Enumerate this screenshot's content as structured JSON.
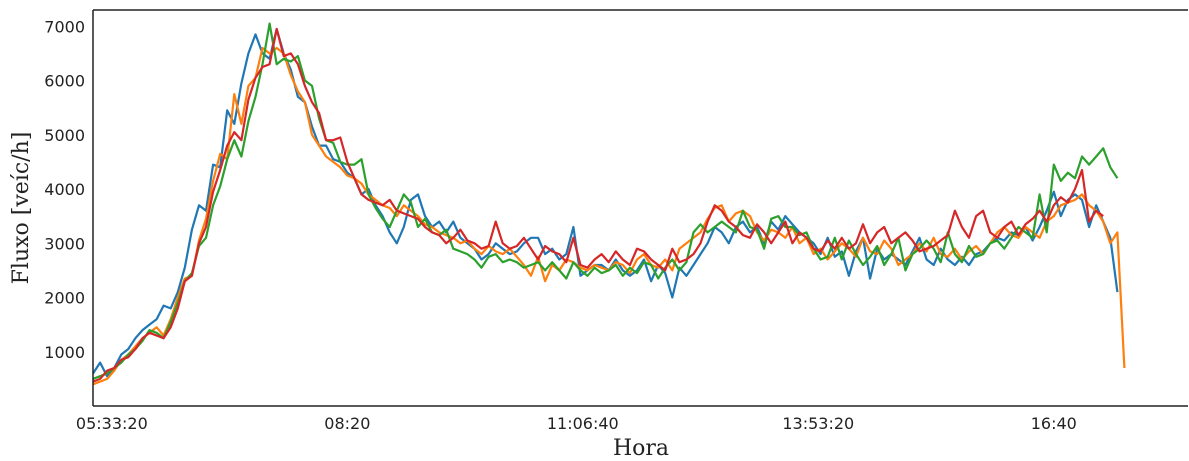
{
  "chart_data": {
    "type": "line",
    "title": "",
    "xlabel": "Hora",
    "ylabel": "Fluxo [veíc/h]",
    "x_start": "05:20",
    "x_step_minutes": 5,
    "xlim": [
      "05:20",
      "18:15"
    ],
    "ylim": [
      0,
      7300
    ],
    "xticks": [
      "05:33:20",
      "08:20",
      "11:06:40",
      "13:53:20",
      "16:40"
    ],
    "yticks": [
      1000,
      2000,
      3000,
      4000,
      5000,
      6000,
      7000
    ],
    "grid": false,
    "legend": "none",
    "series": [
      {
        "color": "#1f77b4",
        "values": [
          600,
          800,
          550,
          700,
          950,
          1050,
          1250,
          1400,
          1500,
          1600,
          1850,
          1800,
          2100,
          2550,
          3250,
          3700,
          3600,
          4450,
          4400,
          5450,
          5200,
          5950,
          6500,
          6850,
          6500,
          6400,
          6950,
          6500,
          6200,
          5700,
          5600,
          5150,
          4800,
          4800,
          4550,
          4500,
          4300,
          4200,
          3900,
          4000,
          3700,
          3500,
          3200,
          3000,
          3300,
          3800,
          3900,
          3500,
          3300,
          3400,
          3200,
          3400,
          3100,
          3000,
          2900,
          2700,
          2800,
          3000,
          2900,
          2800,
          2850,
          3000,
          3100,
          3100,
          2800,
          2900,
          2700,
          2800,
          3300,
          2400,
          2500,
          2600,
          2600,
          2500,
          2700,
          2500,
          2400,
          2500,
          2700,
          2300,
          2600,
          2450,
          2000,
          2550,
          2400,
          2600,
          2800,
          3000,
          3300,
          3200,
          3000,
          3300,
          3400,
          3200,
          3300,
          3000,
          3400,
          3250,
          3500,
          3350,
          3200,
          3100,
          3000,
          2800,
          3100,
          2750,
          2850,
          2400,
          2850,
          3100,
          2350,
          2900,
          2700,
          2800,
          2700,
          2600,
          2850,
          3100,
          2700,
          2600,
          2900,
          2700,
          2600,
          2750,
          2600,
          2800,
          2850,
          3000,
          3100,
          3050,
          3200,
          3150,
          3300,
          3050,
          3300,
          3600,
          3950,
          3500,
          3800,
          3900,
          3800,
          3300,
          3700,
          3400,
          3100,
          2100
        ]
      },
      {
        "color": "#ff7f0e",
        "values": [
          400,
          450,
          500,
          650,
          850,
          950,
          1100,
          1250,
          1350,
          1450,
          1300,
          1600,
          2000,
          2350,
          2400,
          3050,
          3450,
          4150,
          4650,
          4550,
          5750,
          5200,
          5900,
          6050,
          6600,
          6500,
          6600,
          6500,
          6100,
          5800,
          5600,
          5000,
          4800,
          4600,
          4500,
          4400,
          4250,
          4200,
          4100,
          3900,
          3800,
          3700,
          3650,
          3500,
          3700,
          3600,
          3500,
          3350,
          3300,
          3200,
          3150,
          3100,
          3000,
          3050,
          2900,
          2800,
          2950,
          2850,
          2800,
          2900,
          2750,
          2600,
          2400,
          2750,
          2300,
          2600,
          2500,
          2700,
          2650,
          2550,
          2500,
          2600,
          2550,
          2500,
          2650,
          2600,
          2450,
          2700,
          2800,
          2600,
          2550,
          2700,
          2500,
          2900,
          3000,
          3100,
          3200,
          3450,
          3650,
          3700,
          3400,
          3550,
          3600,
          3500,
          3200,
          3050,
          3250,
          3200,
          3100,
          3300,
          3000,
          3100,
          2800,
          2900,
          2700,
          2850,
          3000,
          2900,
          2750,
          3100,
          2850,
          2800,
          3050,
          2900,
          2600,
          2700,
          2800,
          3000,
          2850,
          3100,
          2800,
          2750,
          2900,
          2700,
          2850,
          2950,
          2800,
          3000,
          3200,
          3300,
          3150,
          3100,
          3300,
          3200,
          3100,
          3400,
          3500,
          3700,
          3750,
          3800,
          3900,
          3700,
          3600,
          3400,
          3000,
          3200,
          700
        ]
      },
      {
        "color": "#2ca02c",
        "values": [
          500,
          550,
          600,
          700,
          800,
          950,
          1050,
          1200,
          1400,
          1350,
          1250,
          1550,
          1900,
          2300,
          2450,
          2950,
          3100,
          3700,
          4050,
          4550,
          4900,
          4600,
          5250,
          5700,
          6300,
          7050,
          6300,
          6400,
          6350,
          6450,
          6000,
          5900,
          5300,
          4900,
          4850,
          4500,
          4450,
          4450,
          4550,
          3900,
          3650,
          3450,
          3300,
          3600,
          3900,
          3750,
          3300,
          3450,
          3200,
          3150,
          3250,
          2900,
          2850,
          2800,
          2700,
          2550,
          2750,
          2800,
          2650,
          2700,
          2650,
          2550,
          2600,
          2650,
          2500,
          2650,
          2500,
          2350,
          2650,
          2500,
          2400,
          2550,
          2450,
          2500,
          2600,
          2400,
          2550,
          2450,
          2650,
          2600,
          2350,
          2550,
          2700,
          2500,
          2650,
          3200,
          3350,
          3200,
          3300,
          3400,
          3300,
          3200,
          3600,
          3300,
          3250,
          2900,
          3450,
          3500,
          3300,
          3300,
          3150,
          3200,
          2900,
          2700,
          2750,
          3100,
          2700,
          3050,
          2800,
          2600,
          2750,
          2950,
          2600,
          2800,
          3100,
          2500,
          2800,
          2900,
          3050,
          2900,
          2650,
          3200,
          2800,
          2650,
          2950,
          2750,
          2800,
          3000,
          3050,
          2900,
          3100,
          3300,
          3200,
          3100,
          3900,
          3200,
          4450,
          4150,
          4300,
          4200,
          4600,
          4450,
          4600,
          4750,
          4400,
          4200
        ]
      },
      {
        "color": "#d62728",
        "values": [
          450,
          500,
          650,
          700,
          850,
          900,
          1050,
          1250,
          1350,
          1300,
          1250,
          1450,
          1800,
          2300,
          2400,
          3000,
          3300,
          3950,
          4350,
          4800,
          5050,
          4900,
          5650,
          6050,
          6250,
          6300,
          6950,
          6450,
          6500,
          6300,
          5900,
          5600,
          5400,
          4900,
          4900,
          4950,
          4500,
          4200,
          3900,
          3800,
          3750,
          3700,
          3800,
          3600,
          3550,
          3500,
          3450,
          3300,
          3200,
          3150,
          3000,
          3100,
          3250,
          3050,
          3000,
          2900,
          2950,
          3400,
          3000,
          2900,
          2950,
          3100,
          2900,
          2700,
          2950,
          2850,
          2800,
          2650,
          3100,
          2600,
          2550,
          2700,
          2800,
          2650,
          2850,
          2700,
          2600,
          2900,
          2850,
          2700,
          2600,
          2500,
          2900,
          2650,
          2700,
          2800,
          3000,
          3400,
          3700,
          3600,
          3400,
          3300,
          3150,
          3100,
          3350,
          3200,
          3000,
          3200,
          3400,
          3000,
          3200,
          3100,
          2900,
          2850,
          3050,
          2900,
          3100,
          2900,
          3000,
          3350,
          3000,
          3200,
          3300,
          3000,
          3100,
          3200,
          3050,
          2850,
          2900,
          2950,
          3050,
          3150,
          3600,
          3300,
          3100,
          3500,
          3600,
          3200,
          3100,
          3300,
          3400,
          3150,
          3350,
          3450,
          3600,
          3400,
          3700,
          3850,
          3750,
          4000,
          4350,
          3400,
          3600,
          3500
        ]
      }
    ]
  }
}
